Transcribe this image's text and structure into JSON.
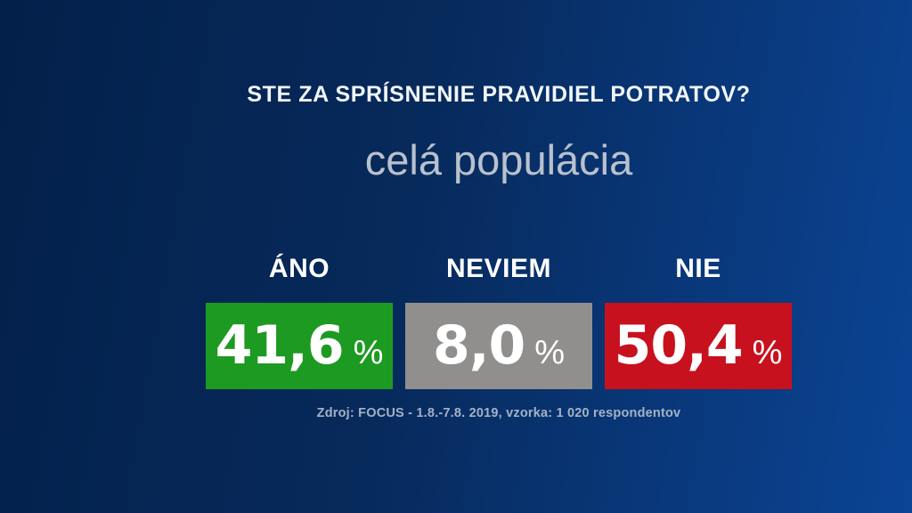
{
  "chart_data": {
    "type": "bar",
    "title": "STE ZA SPRÍSNENIE PRAVIDIEL POTRATOV?",
    "subtitle": "celá populácia",
    "categories": [
      "ÁNO",
      "NEVIEM",
      "NIE"
    ],
    "values": [
      41.6,
      8.0,
      50.4
    ],
    "value_labels": [
      "41,6",
      "8,0",
      "50,4"
    ],
    "unit": "%",
    "bar_colors": [
      "#1d9a21",
      "#918f8d",
      "#c8111e"
    ],
    "source": "Zdroj: FOCUS - 1.8.-7.8. 2019, vzorka: 1 020 respondentov",
    "grid": false,
    "legend_position": "none"
  },
  "theme": {
    "background_gradient_start": "#03204a",
    "background_gradient_end": "#0b4495",
    "title_color": "#f2f6fa",
    "subtitle_color": "#b9c1ce",
    "source_color": "#a3b2c6",
    "value_text_color": "#ffffff"
  }
}
